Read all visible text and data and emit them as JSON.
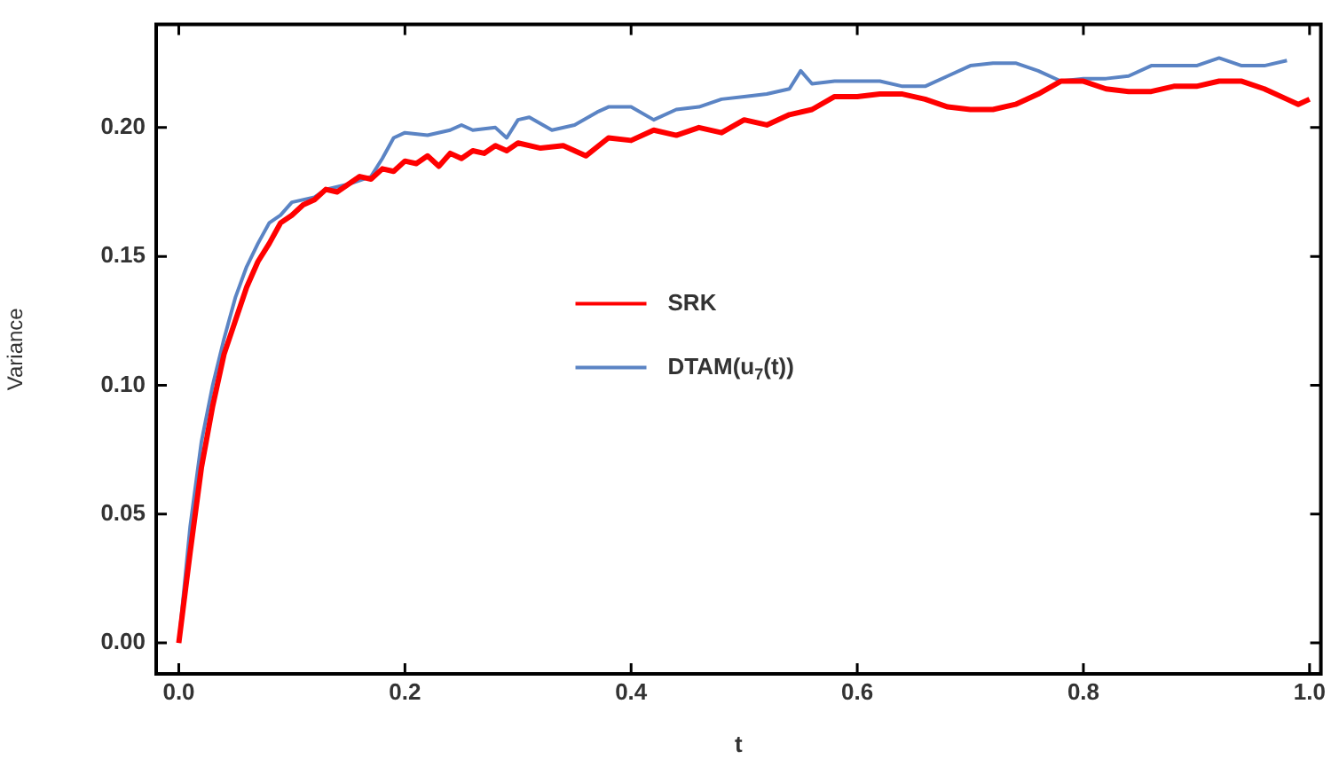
{
  "chart_data": {
    "type": "line",
    "xlabel": "t",
    "ylabel": "Variance",
    "xlim": [
      -0.02,
      1.01
    ],
    "ylim": [
      -0.012,
      0.24
    ],
    "xticks": [
      {
        "value": 0,
        "label": "0.0"
      },
      {
        "value": 0.2,
        "label": "0.2"
      },
      {
        "value": 0.4,
        "label": "0.4"
      },
      {
        "value": 0.6,
        "label": "0.6"
      },
      {
        "value": 0.8,
        "label": "0.8"
      },
      {
        "value": 1,
        "label": "1.0"
      }
    ],
    "yticks": [
      {
        "value": 0,
        "label": "0.00"
      },
      {
        "value": 0.05,
        "label": "0.05"
      },
      {
        "value": 0.1,
        "label": "0.10"
      },
      {
        "value": 0.15,
        "label": "0.15"
      },
      {
        "value": 0.2,
        "label": "0.20"
      }
    ],
    "grid": false,
    "legend": "center",
    "marker": "none",
    "series": [
      {
        "name": "SRK",
        "color": "#ff0000",
        "x": [
          0,
          0.01,
          0.02,
          0.03,
          0.04,
          0.05,
          0.06,
          0.07,
          0.08,
          0.09,
          0.1,
          0.11,
          0.12,
          0.13,
          0.14,
          0.15,
          0.16,
          0.17,
          0.18,
          0.19,
          0.2,
          0.21,
          0.22,
          0.23,
          0.24,
          0.25,
          0.26,
          0.27,
          0.28,
          0.29,
          0.3,
          0.32,
          0.34,
          0.36,
          0.38,
          0.4,
          0.42,
          0.44,
          0.46,
          0.48,
          0.5,
          0.52,
          0.54,
          0.56,
          0.58,
          0.6,
          0.62,
          0.64,
          0.66,
          0.68,
          0.7,
          0.72,
          0.74,
          0.76,
          0.78,
          0.8,
          0.82,
          0.84,
          0.86,
          0.88,
          0.9,
          0.92,
          0.94,
          0.96,
          0.98,
          0.99,
          1.0
        ],
        "values": [
          0,
          0.035,
          0.068,
          0.092,
          0.112,
          0.125,
          0.138,
          0.148,
          0.155,
          0.163,
          0.166,
          0.17,
          0.172,
          0.176,
          0.175,
          0.178,
          0.181,
          0.18,
          0.184,
          0.183,
          0.187,
          0.186,
          0.189,
          0.185,
          0.19,
          0.188,
          0.191,
          0.19,
          0.193,
          0.191,
          0.194,
          0.192,
          0.193,
          0.189,
          0.196,
          0.195,
          0.199,
          0.197,
          0.2,
          0.198,
          0.203,
          0.201,
          0.205,
          0.207,
          0.212,
          0.212,
          0.213,
          0.213,
          0.211,
          0.208,
          0.207,
          0.207,
          0.209,
          0.213,
          0.218,
          0.218,
          0.215,
          0.214,
          0.214,
          0.216,
          0.216,
          0.218,
          0.218,
          0.215,
          0.211,
          0.209,
          0.211
        ]
      },
      {
        "name": "DTAM(u$_{7}$(t))",
        "color": "#5b84c4",
        "x": [
          0,
          0.01,
          0.02,
          0.03,
          0.04,
          0.05,
          0.06,
          0.07,
          0.08,
          0.09,
          0.1,
          0.12,
          0.13,
          0.15,
          0.17,
          0.18,
          0.19,
          0.2,
          0.22,
          0.24,
          0.25,
          0.26,
          0.28,
          0.29,
          0.3,
          0.31,
          0.33,
          0.35,
          0.37,
          0.38,
          0.4,
          0.42,
          0.44,
          0.46,
          0.48,
          0.5,
          0.52,
          0.54,
          0.55,
          0.56,
          0.58,
          0.6,
          0.62,
          0.64,
          0.66,
          0.68,
          0.7,
          0.72,
          0.74,
          0.76,
          0.78,
          0.8,
          0.82,
          0.84,
          0.86,
          0.88,
          0.9,
          0.92,
          0.94,
          0.96,
          0.98
        ],
        "values": [
          0,
          0.045,
          0.078,
          0.1,
          0.118,
          0.134,
          0.146,
          0.155,
          0.163,
          0.166,
          0.171,
          0.173,
          0.176,
          0.178,
          0.181,
          0.188,
          0.196,
          0.198,
          0.197,
          0.199,
          0.201,
          0.199,
          0.2,
          0.196,
          0.203,
          0.204,
          0.199,
          0.201,
          0.206,
          0.208,
          0.208,
          0.203,
          0.207,
          0.208,
          0.211,
          0.212,
          0.213,
          0.215,
          0.222,
          0.217,
          0.218,
          0.218,
          0.218,
          0.216,
          0.216,
          0.22,
          0.224,
          0.225,
          0.225,
          0.222,
          0.218,
          0.219,
          0.219,
          0.22,
          0.224,
          0.224,
          0.224,
          0.227,
          0.224,
          0.224,
          0.226
        ]
      }
    ]
  }
}
